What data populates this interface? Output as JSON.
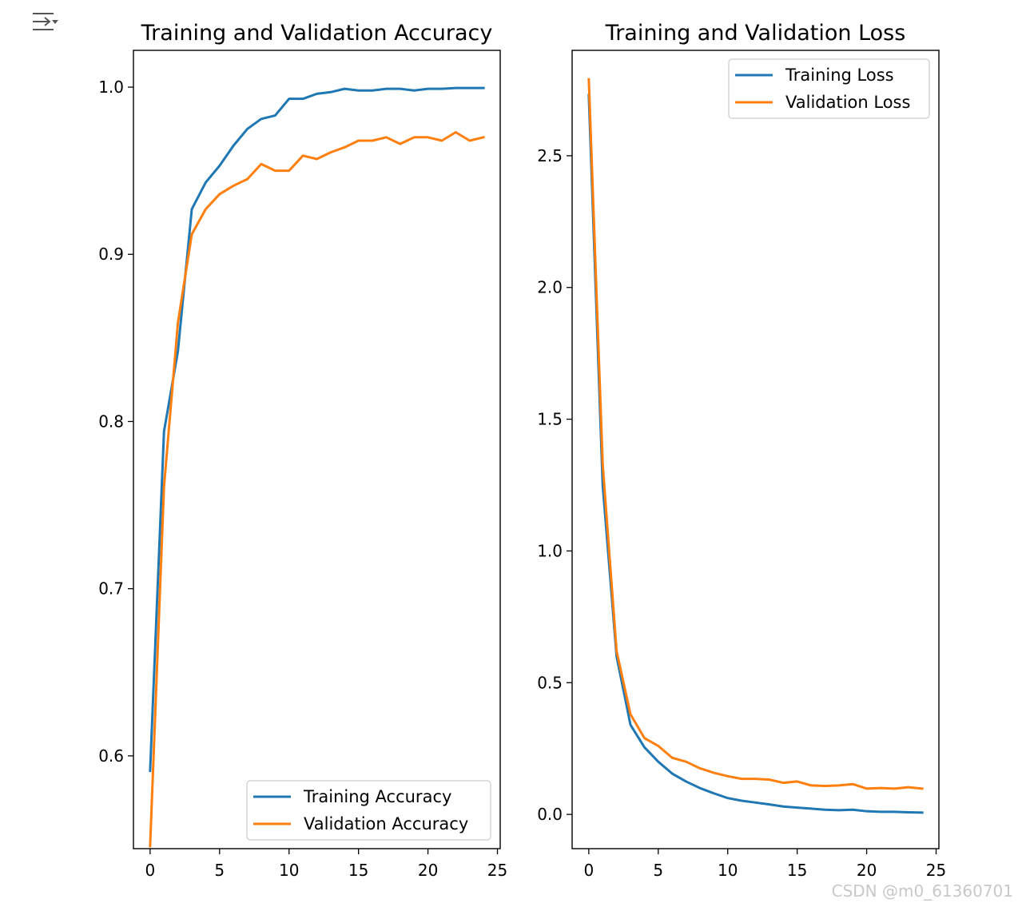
{
  "ui": {
    "output_icon": "output-toggle-icon",
    "watermark": "CSDN @m0_61360701"
  },
  "colors": {
    "training": "#1f77b4",
    "validation": "#ff7f0e",
    "axis": "#000000"
  },
  "chart_data": [
    {
      "type": "line",
      "title": "Training and Validation Accuracy",
      "xlabel": "",
      "ylabel": "",
      "xlim": [
        -1.2,
        25.2
      ],
      "ylim": [
        0.5445,
        1.022
      ],
      "xticks": [
        0,
        5,
        10,
        15,
        20,
        25
      ],
      "yticks": [
        0.6,
        0.7,
        0.8,
        0.9,
        1.0
      ],
      "yticklabels": [
        "0.6",
        "0.7",
        "0.8",
        "0.9",
        "1.0"
      ],
      "legend_loc": "lower-right",
      "x": [
        0,
        1,
        2,
        3,
        4,
        5,
        6,
        7,
        8,
        9,
        10,
        11,
        12,
        13,
        14,
        15,
        16,
        17,
        18,
        19,
        20,
        21,
        22,
        23,
        24
      ],
      "series": [
        {
          "name": "Training Accuracy",
          "color": "#1f77b4",
          "values": [
            0.591,
            0.794,
            0.842,
            0.927,
            0.943,
            0.953,
            0.965,
            0.975,
            0.981,
            0.983,
            0.993,
            0.993,
            0.996,
            0.997,
            0.999,
            0.998,
            0.998,
            0.999,
            0.999,
            0.998,
            0.999,
            0.999,
            0.9995,
            0.9995,
            0.9995
          ]
        },
        {
          "name": "Validation Accuracy",
          "color": "#ff7f0e",
          "values": [
            0.546,
            0.761,
            0.859,
            0.912,
            0.927,
            0.936,
            0.941,
            0.945,
            0.954,
            0.95,
            0.95,
            0.959,
            0.957,
            0.961,
            0.964,
            0.968,
            0.968,
            0.97,
            0.966,
            0.97,
            0.97,
            0.968,
            0.973,
            0.968,
            0.97
          ]
        }
      ]
    },
    {
      "type": "line",
      "title": "Training and Validation Loss",
      "xlabel": "",
      "ylabel": "",
      "xlim": [
        -1.2,
        25.2
      ],
      "ylim": [
        -0.13,
        2.9
      ],
      "xticks": [
        0,
        5,
        10,
        15,
        20,
        25
      ],
      "yticks": [
        0.0,
        0.5,
        1.0,
        1.5,
        2.0,
        2.5
      ],
      "yticklabels": [
        "0.0",
        "0.5",
        "1.0",
        "1.5",
        "2.0",
        "2.5"
      ],
      "legend_loc": "upper-right",
      "x": [
        0,
        1,
        2,
        3,
        4,
        5,
        6,
        7,
        8,
        9,
        10,
        11,
        12,
        13,
        14,
        15,
        16,
        17,
        18,
        19,
        20,
        21,
        22,
        23,
        24
      ],
      "series": [
        {
          "name": "Training Loss",
          "color": "#1f77b4",
          "values": [
            2.73,
            1.25,
            0.6,
            0.34,
            0.255,
            0.2,
            0.155,
            0.125,
            0.1,
            0.08,
            0.062,
            0.052,
            0.045,
            0.038,
            0.03,
            0.026,
            0.022,
            0.018,
            0.016,
            0.018,
            0.012,
            0.01,
            0.01,
            0.008,
            0.007
          ]
        },
        {
          "name": "Validation Loss",
          "color": "#ff7f0e",
          "values": [
            2.79,
            1.33,
            0.62,
            0.38,
            0.29,
            0.26,
            0.215,
            0.2,
            0.175,
            0.158,
            0.145,
            0.135,
            0.135,
            0.132,
            0.12,
            0.125,
            0.11,
            0.108,
            0.11,
            0.115,
            0.098,
            0.1,
            0.098,
            0.103,
            0.098
          ]
        }
      ]
    }
  ]
}
